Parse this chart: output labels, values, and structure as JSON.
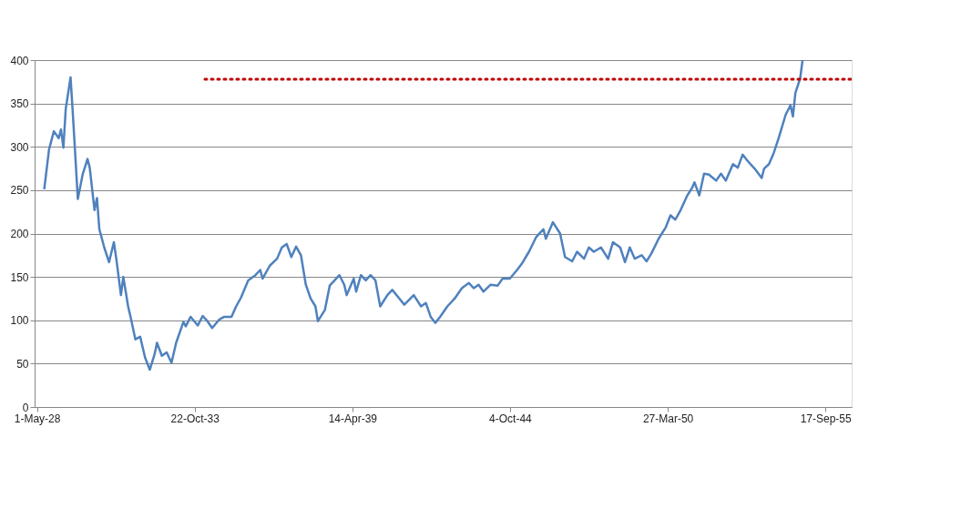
{
  "chart_data": {
    "type": "line",
    "xlim": [
      "1928-04-01",
      "1956-08-15"
    ],
    "xticks": [
      {
        "value": "1928-05-01",
        "label": "1-May-28"
      },
      {
        "value": "1933-10-22",
        "label": "22-Oct-33"
      },
      {
        "value": "1939-04-14",
        "label": "14-Apr-39"
      },
      {
        "value": "1944-10-04",
        "label": "4-Oct-44"
      },
      {
        "value": "1950-03-27",
        "label": "27-Mar-50"
      },
      {
        "value": "1955-09-17",
        "label": "17-Sep-55"
      }
    ],
    "ylim": [
      0,
      400
    ],
    "yticks": [
      0,
      50,
      100,
      150,
      200,
      250,
      300,
      350,
      400
    ],
    "grid": "y",
    "series": [
      {
        "color": "#4f81bd",
        "line_style": "solid",
        "x": [
          "1928-08",
          "1928-10",
          "1928-12",
          "1929-02",
          "1929-03",
          "1929-04",
          "1929-05",
          "1929-07",
          "1929-08",
          "1929-10",
          "1929-12",
          "1930-02",
          "1930-03",
          "1930-05",
          "1930-06",
          "1930-07",
          "1930-09",
          "1930-11",
          "1931-01",
          "1931-02",
          "1931-04",
          "1931-05",
          "1931-07",
          "1931-08",
          "1931-10",
          "1931-12",
          "1932-02",
          "1932-04",
          "1932-06",
          "1932-07",
          "1932-09",
          "1932-11",
          "1933-01",
          "1933-03",
          "1933-06",
          "1933-07",
          "1933-09",
          "1933-12",
          "1934-02",
          "1934-04",
          "1934-06",
          "1934-09",
          "1934-11",
          "1935-02",
          "1935-04",
          "1935-06",
          "1935-09",
          "1935-12",
          "1936-02",
          "1936-03",
          "1936-06",
          "1936-09",
          "1936-11",
          "1937-01",
          "1937-03",
          "1937-05",
          "1937-07",
          "1937-09",
          "1937-11",
          "1938-01",
          "1938-02",
          "1938-05",
          "1938-07",
          "1938-09",
          "1938-11",
          "1939-01",
          "1939-02",
          "1939-05",
          "1939-06",
          "1939-08",
          "1939-10",
          "1939-12",
          "1940-02",
          "1940-04",
          "1940-07",
          "1940-09",
          "1940-12",
          "1941-02",
          "1941-06",
          "1941-09",
          "1941-11",
          "1942-01",
          "1942-03",
          "1942-05",
          "1942-08",
          "1942-11",
          "1943-02",
          "1943-05",
          "1943-07",
          "1943-09",
          "1943-11",
          "1944-02",
          "1944-05",
          "1944-07",
          "1944-10",
          "1945-01",
          "1945-03",
          "1945-06",
          "1945-09",
          "1945-12",
          "1946-01",
          "1946-04",
          "1946-07",
          "1946-09",
          "1946-12",
          "1947-02",
          "1947-05",
          "1947-07",
          "1947-09",
          "1947-12",
          "1948-03",
          "1948-05",
          "1948-08",
          "1948-10",
          "1948-12",
          "1949-02",
          "1949-05",
          "1949-07",
          "1949-09",
          "1949-12",
          "1950-03",
          "1950-05",
          "1950-07",
          "1950-09",
          "1950-12",
          "1951-02",
          "1951-03",
          "1951-05",
          "1951-07",
          "1951-09",
          "1951-12",
          "1952-02",
          "1952-04",
          "1952-07",
          "1952-09",
          "1952-11",
          "1953-01",
          "1953-04",
          "1953-07",
          "1953-08",
          "1953-10",
          "1953-12",
          "1954-02",
          "1954-05",
          "1954-07",
          "1954-08",
          "1954-09",
          "1954-11",
          "1954-12"
        ],
        "values": [
          251,
          297,
          318,
          310,
          320,
          299,
          344,
          380,
          335,
          240,
          268,
          286,
          276,
          227,
          241,
          205,
          184,
          167,
          190,
          171,
          129,
          150,
          116,
          104,
          78,
          81,
          57,
          43,
          61,
          74,
          59,
          63,
          51,
          74,
          98,
          93,
          104,
          94,
          105,
          99,
          91,
          101,
          104,
          104,
          116,
          126,
          146,
          152,
          158,
          148,
          163,
          171,
          184,
          188,
          173,
          185,
          175,
          141,
          125,
          116,
          99,
          112,
          140,
          146,
          152,
          141,
          129,
          148,
          133,
          152,
          146,
          152,
          146,
          116,
          129,
          135,
          125,
          118,
          129,
          116,
          120,
          104,
          97,
          104,
          116,
          125,
          137,
          143,
          137,
          141,
          133,
          141,
          140,
          148,
          148,
          158,
          165,
          179,
          196,
          205,
          194,
          213,
          200,
          173,
          168,
          179,
          171,
          184,
          179,
          184,
          171,
          190,
          184,
          167,
          184,
          171,
          175,
          168,
          177,
          194,
          207,
          221,
          216,
          226,
          244,
          253,
          259,
          244,
          269,
          268,
          261,
          269,
          261,
          280,
          276,
          291,
          284,
          275,
          264,
          275,
          280,
          293,
          310,
          337,
          348,
          335,
          362,
          379,
          400
        ]
      },
      {
        "color": "#c00000",
        "line_style": "dotted",
        "x": [
          "1934-03",
          "1956-08-15"
        ],
        "values": [
          378,
          378
        ]
      }
    ]
  }
}
